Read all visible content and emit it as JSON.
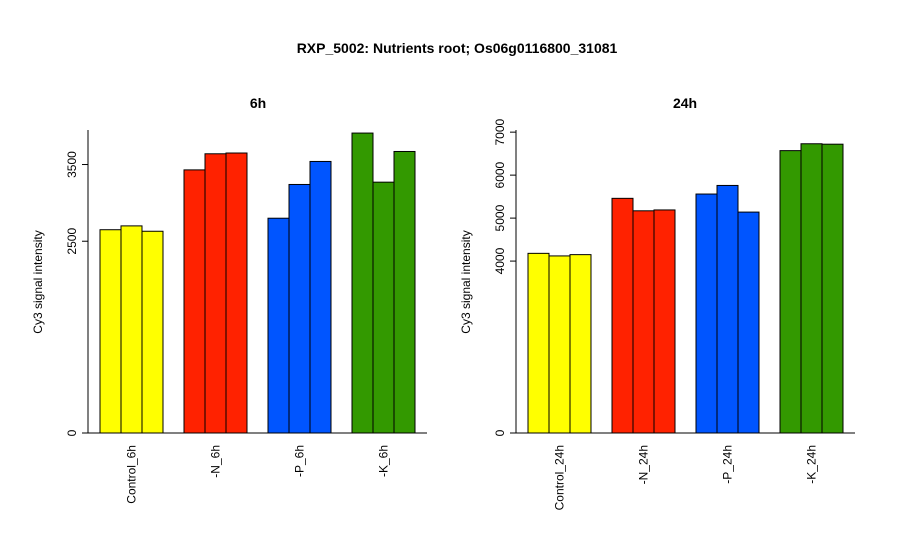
{
  "title": "RXP_5002: Nutrients root; Os06g0116800_31081",
  "chart_data": [
    {
      "type": "bar",
      "title": "6h",
      "ylabel": "Cy3 signal intensity",
      "ylim": [
        0,
        3950
      ],
      "yticks": [
        0,
        2500,
        3500
      ],
      "categories": [
        "Control_6h",
        "-N_6h",
        "-P_6h",
        "-K_6h"
      ],
      "group_colors": [
        "#ffff00",
        "#ff2200",
        "#0055ff",
        "#339900"
      ],
      "values": [
        [
          2650,
          2700,
          2630
        ],
        [
          3430,
          3640,
          3650
        ],
        [
          2800,
          3240,
          3540
        ],
        [
          3910,
          3270,
          3670
        ]
      ]
    },
    {
      "type": "bar",
      "title": "24h",
      "ylabel": "Cy3 signal intensity",
      "ylim": [
        0,
        7050
      ],
      "yticks": [
        0,
        4000,
        5000,
        6000,
        7000
      ],
      "categories": [
        "Control_24h",
        "-N_24h",
        "-P_24h",
        "-K_24h"
      ],
      "group_colors": [
        "#ffff00",
        "#ff2200",
        "#0055ff",
        "#339900"
      ],
      "values": [
        [
          4180,
          4120,
          4150
        ],
        [
          5460,
          5170,
          5190
        ],
        [
          5560,
          5760,
          5140
        ],
        [
          6570,
          6730,
          6720
        ]
      ]
    }
  ]
}
